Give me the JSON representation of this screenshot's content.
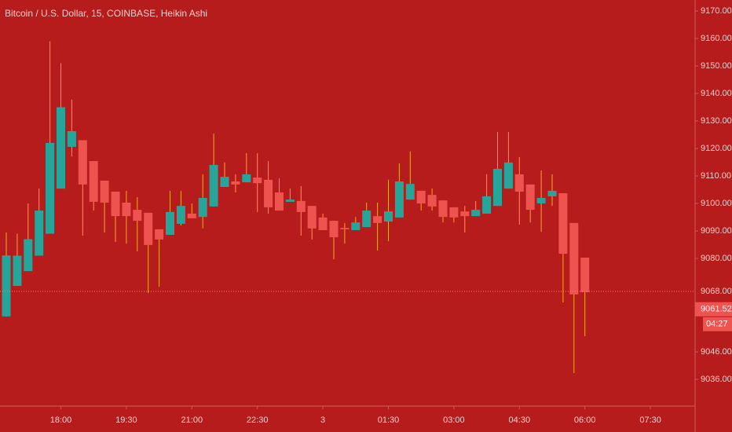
{
  "chart_data": {
    "type": "candlestick",
    "title": "Bitcoin / U.S. Dollar, 15, COINBASE, Heikin Ashi",
    "categories": [
      null,
      null,
      null,
      null,
      null,
      "18:00",
      null,
      null,
      null,
      null,
      null,
      "19:30",
      null,
      null,
      null,
      null,
      null,
      "21:00",
      null,
      null,
      null,
      null,
      null,
      "22:30",
      null,
      null,
      null,
      null,
      null,
      "3",
      null,
      null,
      null,
      null,
      null,
      "01:30",
      null,
      null,
      null,
      null,
      null,
      "03:00",
      null,
      null,
      null,
      null,
      null,
      "04:30",
      null,
      null,
      null,
      null,
      null,
      "06:00",
      null,
      null,
      null,
      null,
      null,
      "07:30"
    ],
    "open": [
      9058.9,
      9070,
      9075.4,
      9081,
      9089,
      9105.4,
      9120.6,
      9123,
      9115.4,
      9108.3,
      9104.3,
      9100.3,
      9097.7,
      9096.6,
      9090.6,
      9088.6,
      9092.6,
      9096.3,
      9095.1,
      9098.9,
      9106,
      9108,
      9107.7,
      9109.4,
      9108.6,
      9104,
      9100.6,
      9100.9,
      9099.1,
      9094.9,
      9093.7,
      9091.1,
      9090.3,
      9091.4,
      9095.4,
      9093.4,
      9094.9,
      9101.4,
      9104.6,
      9103.1,
      9101.1,
      9098.6,
      9097.1,
      9095.4,
      9096.3,
      9099.1,
      9105.4,
      9110.6,
      9106.9,
      9100,
      9102.6,
      9103.7,
      9092.9,
      9080.3,
      null,
      null,
      null,
      null,
      null,
      null
    ],
    "high": [
      9089.4,
      9089,
      9100,
      9105.4,
      9159,
      9151,
      9137.7,
      9123,
      9115.4,
      9108.3,
      9104.3,
      9104.6,
      9102.3,
      9096.6,
      9090.6,
      9104.6,
      9104.6,
      9100,
      9110.6,
      9125.4,
      9114.9,
      9110.6,
      9118.3,
      9118.3,
      9115.4,
      9109.1,
      9105.4,
      9106.3,
      9099.1,
      9096.3,
      9093.7,
      9092.9,
      9095.1,
      9100.3,
      9100.3,
      9108.6,
      9114.6,
      9118.9,
      9104.6,
      9105.4,
      9101.1,
      9098.6,
      9099.1,
      9100.9,
      9110.6,
      9126,
      9126,
      9116.9,
      9106.9,
      9112,
      9110.6,
      9103.7,
      9092.9,
      9080.3,
      null,
      null,
      null,
      null,
      null,
      null
    ],
    "low": [
      9058.9,
      9070,
      9075.4,
      9081,
      9089,
      9105.4,
      9117.1,
      9088.3,
      9097.4,
      9089.4,
      9086,
      9085.4,
      9082.6,
      9067.4,
      9069.7,
      9088.6,
      9092,
      9094.6,
      9090.9,
      9098.9,
      9106,
      9104,
      9107.7,
      9096.9,
      9096.3,
      9097.4,
      9100.6,
      9088.3,
      9086.9,
      9090.3,
      9079.7,
      9085.4,
      9090.3,
      9091.4,
      9082.9,
      9086.3,
      9094.9,
      9101.4,
      9097.4,
      9097.4,
      9093.1,
      9093.1,
      9089.4,
      9095.4,
      9096.3,
      9099.1,
      9105.4,
      9092.3,
      9093.1,
      9089.7,
      9099.1,
      9064,
      9038.3,
      9051.7,
      null,
      null,
      null,
      null,
      null,
      null
    ],
    "close": [
      9081.1,
      9081,
      9087,
      9097.4,
      9122,
      9135,
      9126.3,
      9106.9,
      9100.6,
      9100.3,
      9095.4,
      9095.4,
      9093.7,
      9084.9,
      9086.9,
      9096.9,
      9099.1,
      9094.6,
      9102,
      9114,
      9109.7,
      9106.9,
      9110.6,
      9107.4,
      9098.6,
      9097.4,
      9101.4,
      9096.9,
      9090.9,
      9090.3,
      9087.7,
      9090.6,
      9093.1,
      9097.4,
      9092.9,
      9097.1,
      9108,
      9107.1,
      9100,
      9098.9,
      9095.1,
      9094.9,
      9095.4,
      9097.7,
      9102.6,
      9112.6,
      9114.9,
      9104.3,
      9097.7,
      9102,
      9104.6,
      9081.7,
      9066.9,
      9067.7,
      null,
      null,
      null,
      null,
      null,
      null
    ],
    "up_color": "#26a69a",
    "down_color": "#ef5350",
    "wick_color": "#f5a623",
    "background": "#b71c1c",
    "ylim": [
      9026.3,
      9174
    ],
    "yticks": [
      {
        "value": 9170,
        "label": "9170.00"
      },
      {
        "value": 9160,
        "label": "9160.00"
      },
      {
        "value": 9150,
        "label": "9150.00"
      },
      {
        "value": 9140,
        "label": "9140.00"
      },
      {
        "value": 9130,
        "label": "9130.00"
      },
      {
        "value": 9120,
        "label": "9120.00"
      },
      {
        "value": 9110,
        "label": "9110.00"
      },
      {
        "value": 9100,
        "label": "9100.00"
      },
      {
        "value": 9090,
        "label": "9090.00"
      },
      {
        "value": 9080,
        "label": "9080.00"
      },
      {
        "value": 9046,
        "label": "9046.00"
      },
      {
        "value": 9036,
        "label": "9036.00"
      }
    ],
    "price_line": {
      "value": 9068,
      "label": "9068.00"
    },
    "last_price": {
      "value": 9061.52,
      "label": "9061.52"
    },
    "countdown": "04:27"
  }
}
